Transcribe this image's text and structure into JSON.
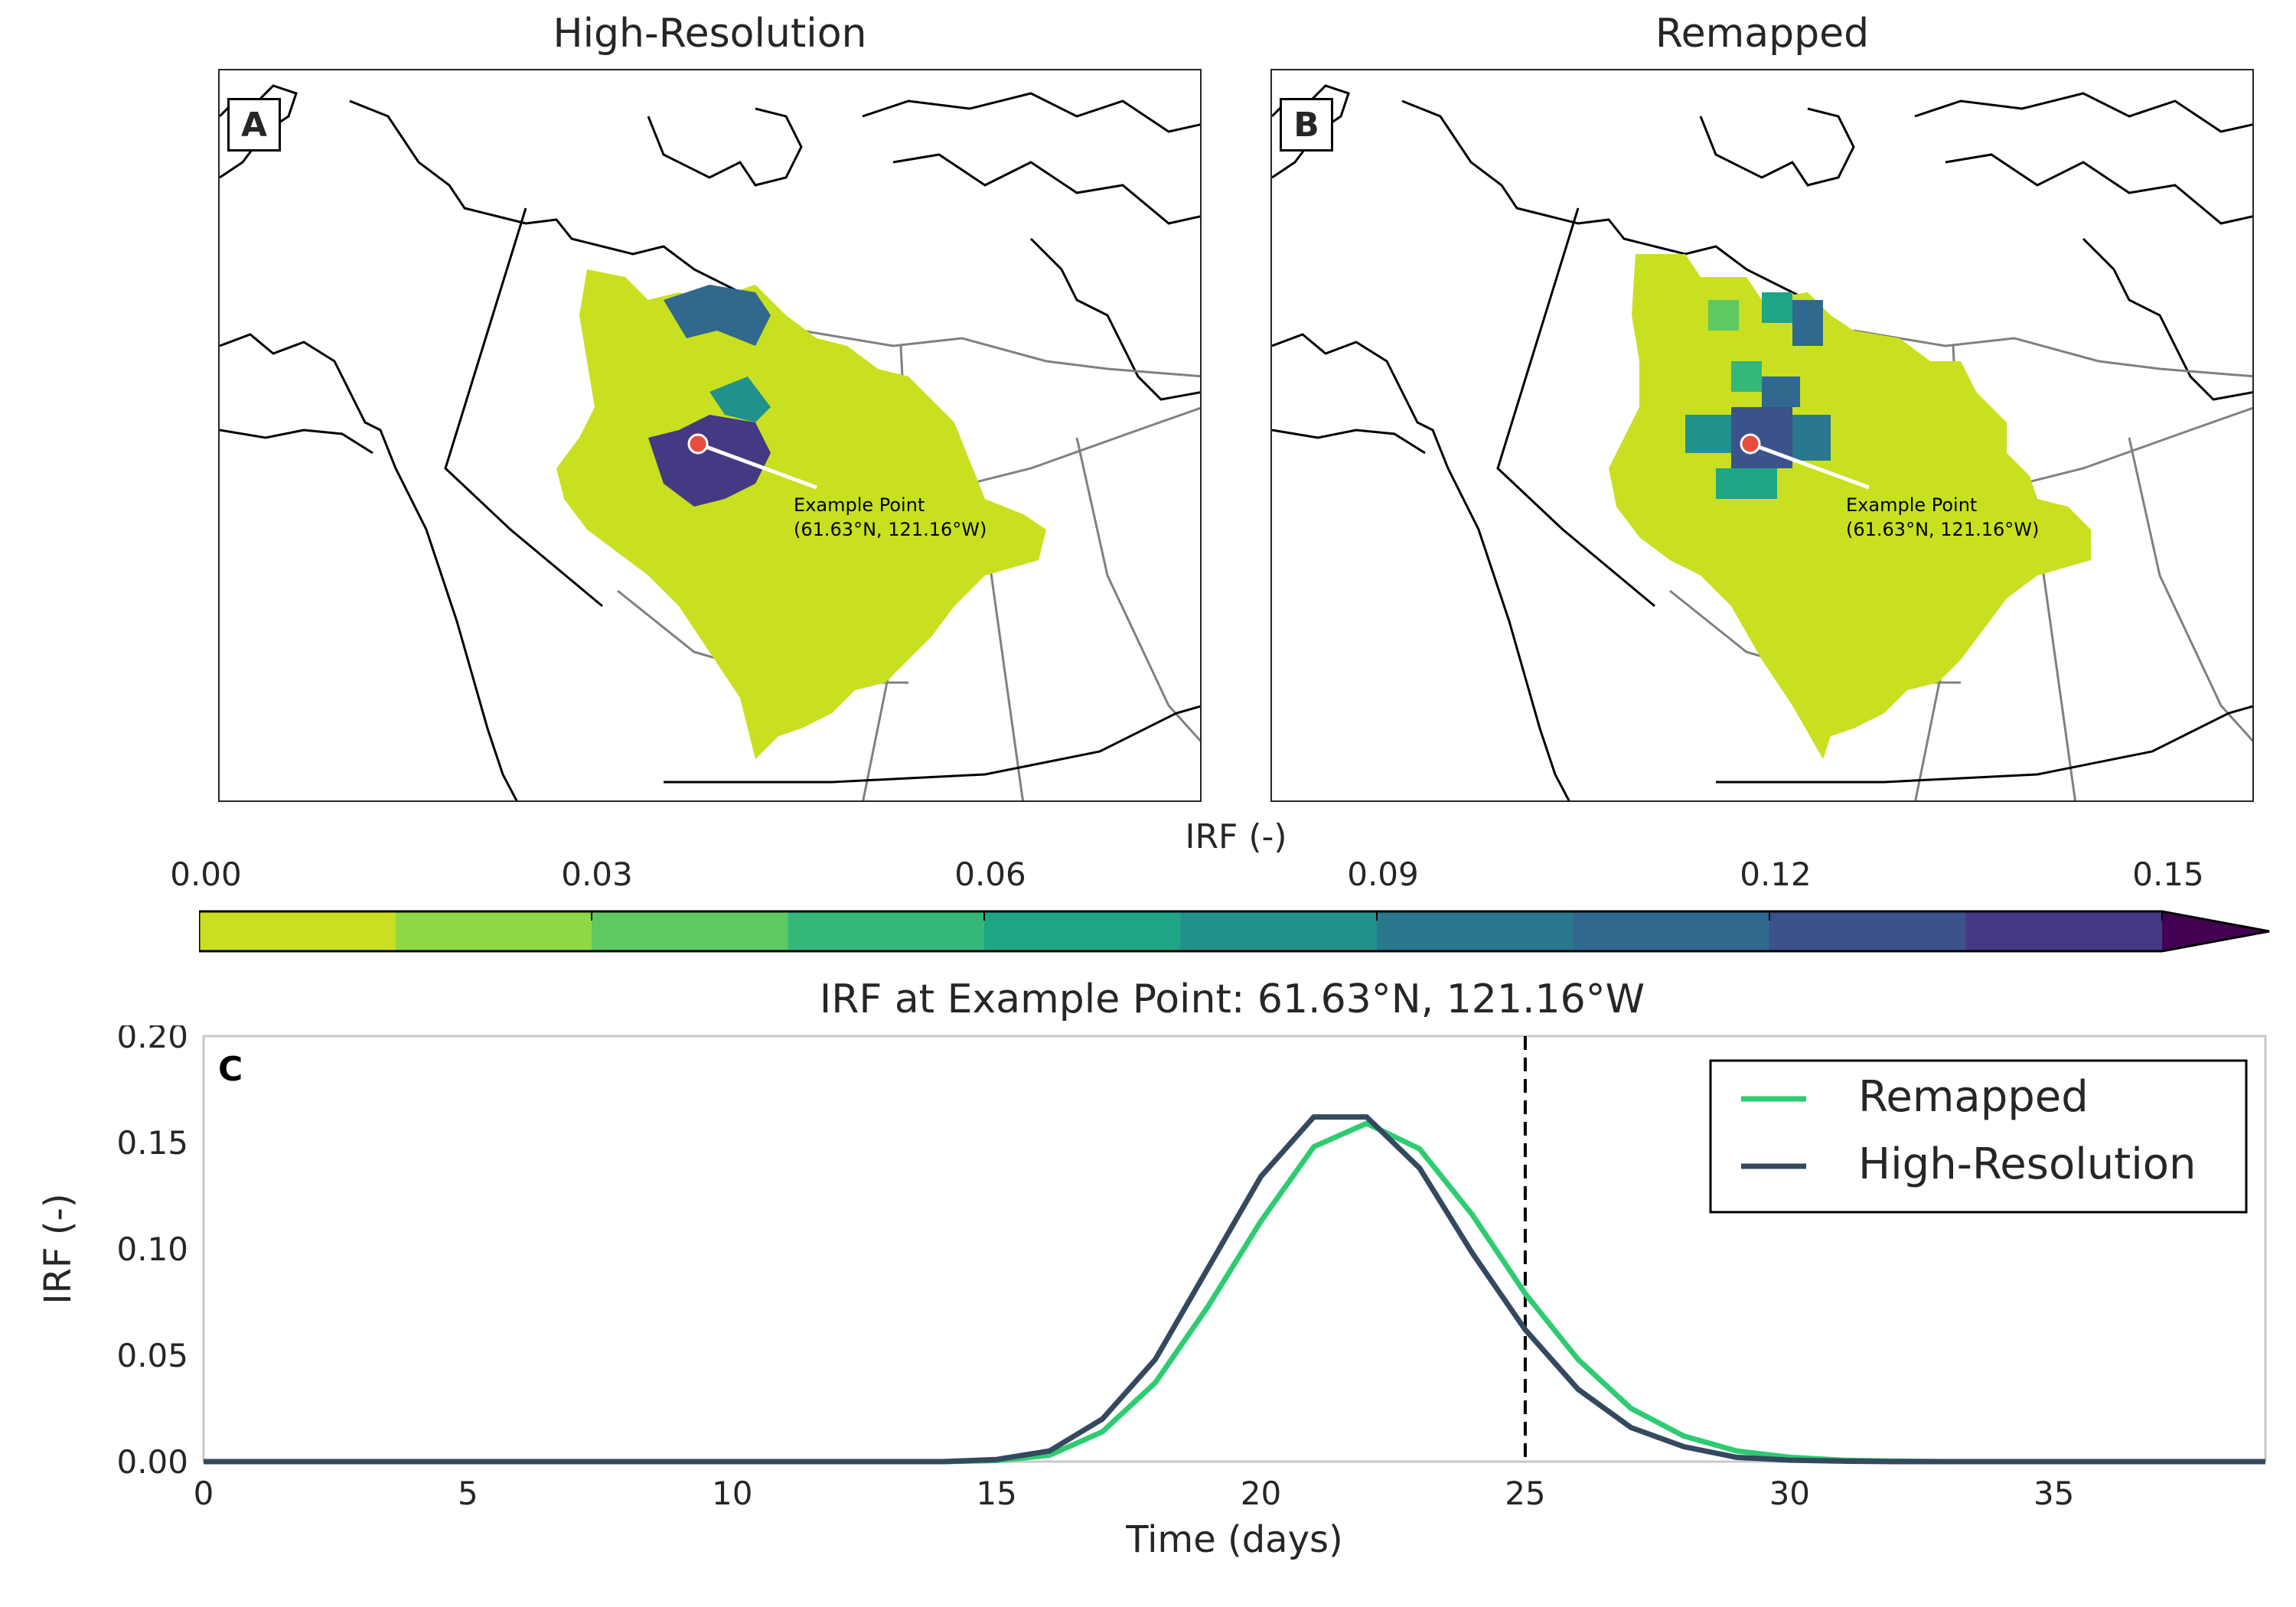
{
  "panels": [
    {
      "id": "A",
      "title": "High-Resolution"
    },
    {
      "id": "B",
      "title": "Remapped"
    }
  ],
  "annotation": {
    "line1": "Example Point",
    "line2": "(61.63$^\\circ$N, 121.16$^\\circ$W)",
    "line2_display": "(61.63°N, 121.16°W)"
  },
  "colorbar": {
    "label": "IRF (-)",
    "ticks": [
      "0.00",
      "0.03",
      "0.06",
      "0.09",
      "0.12",
      "0.15"
    ],
    "colors": [
      "#c8e020",
      "#8fd744",
      "#5ec962",
      "#35b779",
      "#20a486",
      "#21918c",
      "#2a788e",
      "#31688e",
      "#3b528b",
      "#443983"
    ],
    "extend_color": "#440154"
  },
  "chart_data": {
    "type": "line",
    "panel_id": "C",
    "title": "IRF at Example Point: 61.63$^\\circ$N, 121.16$^\\circ$W",
    "title_display": "IRF at Example Point: 61.63°N, 121.16°W",
    "xlabel": "Time (days)",
    "ylabel": "IRF (-)",
    "xlim": [
      0,
      39
    ],
    "ylim": [
      0,
      0.2
    ],
    "xticks": [
      0,
      5,
      10,
      15,
      20,
      25,
      30,
      35
    ],
    "yticks": [
      "0.00",
      "0.05",
      "0.10",
      "0.15",
      "0.20"
    ],
    "vline": {
      "x": 25,
      "style": "dashed"
    },
    "legend": "top-right",
    "series": [
      {
        "name": "Remapped",
        "color": "#2ecc71",
        "x": [
          0,
          1,
          2,
          3,
          4,
          5,
          6,
          7,
          8,
          9,
          10,
          11,
          12,
          13,
          14,
          15,
          16,
          17,
          18,
          19,
          20,
          21,
          22,
          23,
          24,
          25,
          26,
          27,
          28,
          29,
          30,
          31,
          32,
          33,
          34,
          35,
          36,
          37,
          38,
          39
        ],
        "values": [
          0,
          0,
          0,
          0,
          0,
          0,
          0,
          0,
          0,
          0,
          0,
          0,
          0,
          0,
          0,
          0.0005,
          0.003,
          0.014,
          0.037,
          0.073,
          0.113,
          0.148,
          0.159,
          0.147,
          0.116,
          0.079,
          0.048,
          0.025,
          0.012,
          0.005,
          0.002,
          0.0007,
          0.0002,
          0,
          0,
          0,
          0,
          0,
          0,
          0
        ]
      },
      {
        "name": "High-Resolution",
        "color": "#34495e",
        "x": [
          0,
          1,
          2,
          3,
          4,
          5,
          6,
          7,
          8,
          9,
          10,
          11,
          12,
          13,
          14,
          15,
          16,
          17,
          18,
          19,
          20,
          21,
          22,
          23,
          24,
          25,
          26,
          27,
          28,
          29,
          30,
          31,
          32,
          33,
          34,
          35,
          36,
          37,
          38,
          39
        ],
        "values": [
          0,
          0,
          0,
          0,
          0,
          0,
          0,
          0,
          0,
          0,
          0,
          0,
          0,
          0,
          0,
          0.001,
          0.005,
          0.02,
          0.048,
          0.091,
          0.134,
          0.162,
          0.162,
          0.138,
          0.098,
          0.062,
          0.034,
          0.016,
          0.007,
          0.002,
          0.0007,
          0.0002,
          0,
          0,
          0,
          0,
          0,
          0,
          0,
          0
        ]
      }
    ]
  }
}
